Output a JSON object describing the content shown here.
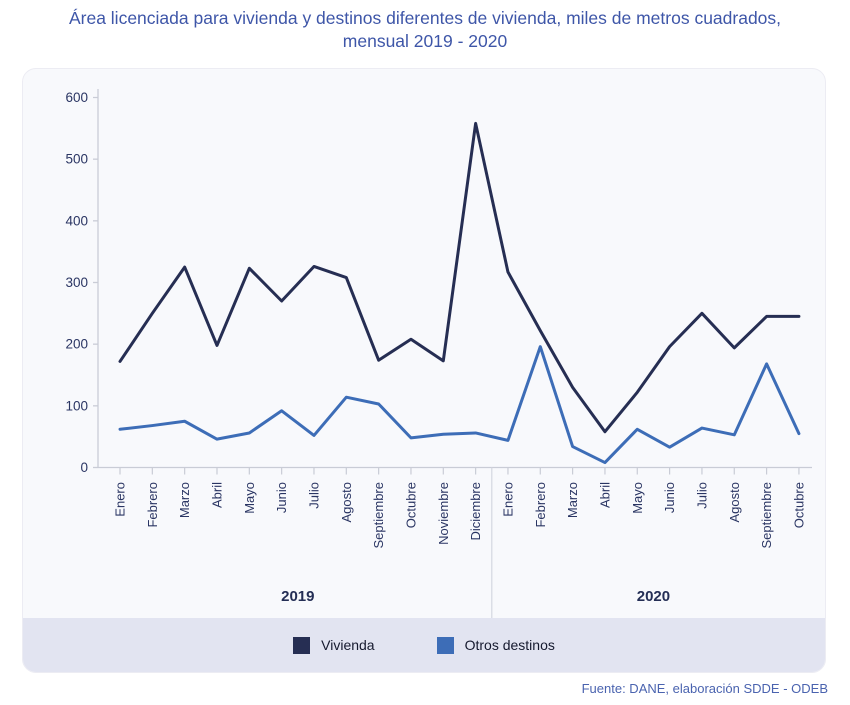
{
  "title": {
    "lines": [
      "Área licenciada para vivienda y destinos diferentes de vivienda, miles de metros cuadrados,",
      "mensual 2019 - 2020"
    ]
  },
  "legend": {
    "items": [
      {
        "label": "Vivienda",
        "color": "#262e53"
      },
      {
        "label": "Otros destinos",
        "color": "#3d6db7"
      }
    ]
  },
  "footer": {
    "source": "Fuente: DANE, elaboración SDDE - ODEB"
  },
  "colors": {
    "title_text": "#3e56a8",
    "axis_text": "#2a3563",
    "axis_line": "#c9ccd6",
    "separator_line": "#d4d7e0",
    "panel_background": "#f8f9fc",
    "legend_band_background": "#e2e4f1",
    "vivienda_line": "#262e53",
    "otros_destinos_line": "#3d6db7",
    "footer_text": "#4a63af"
  },
  "chart_data": {
    "type": "line",
    "title": "Área licenciada para vivienda y destinos diferentes de vivienda, miles de metros cuadrados, mensual 2019 - 2020",
    "categories": [
      "Enero",
      "Febrero",
      "Marzo",
      "Abril",
      "Mayo",
      "Junio",
      "Julio",
      "Agosto",
      "Septiembre",
      "Octubre",
      "Noviembre",
      "Diciembre",
      "Enero",
      "Febrero",
      "Marzo",
      "Abril",
      "Mayo",
      "Junio",
      "Julio",
      "Agosto",
      "Septiembre",
      "Octubre"
    ],
    "x_groups": [
      {
        "year": "2019",
        "month_count": 12
      },
      {
        "year": "2020",
        "month_count": 10
      }
    ],
    "series": [
      {
        "name": "Vivienda",
        "color": "#262e53",
        "values": [
          172,
          250,
          325,
          198,
          323,
          270,
          326,
          308,
          174,
          208,
          173,
          558,
          317,
          222,
          130,
          58,
          122,
          196,
          250,
          194,
          245,
          245
        ]
      },
      {
        "name": "Otros destinos",
        "color": "#3d6db7",
        "values": [
          62,
          68,
          75,
          46,
          56,
          92,
          52,
          114,
          103,
          48,
          54,
          56,
          44,
          196,
          34,
          8,
          62,
          33,
          64,
          53,
          168,
          55
        ]
      }
    ],
    "xlabel": "",
    "ylabel": "",
    "ylim": [
      0,
      600
    ],
    "y_ticks": [
      0,
      100,
      200,
      300,
      400,
      500,
      600
    ],
    "grid": false,
    "legend_position": "bottom"
  }
}
